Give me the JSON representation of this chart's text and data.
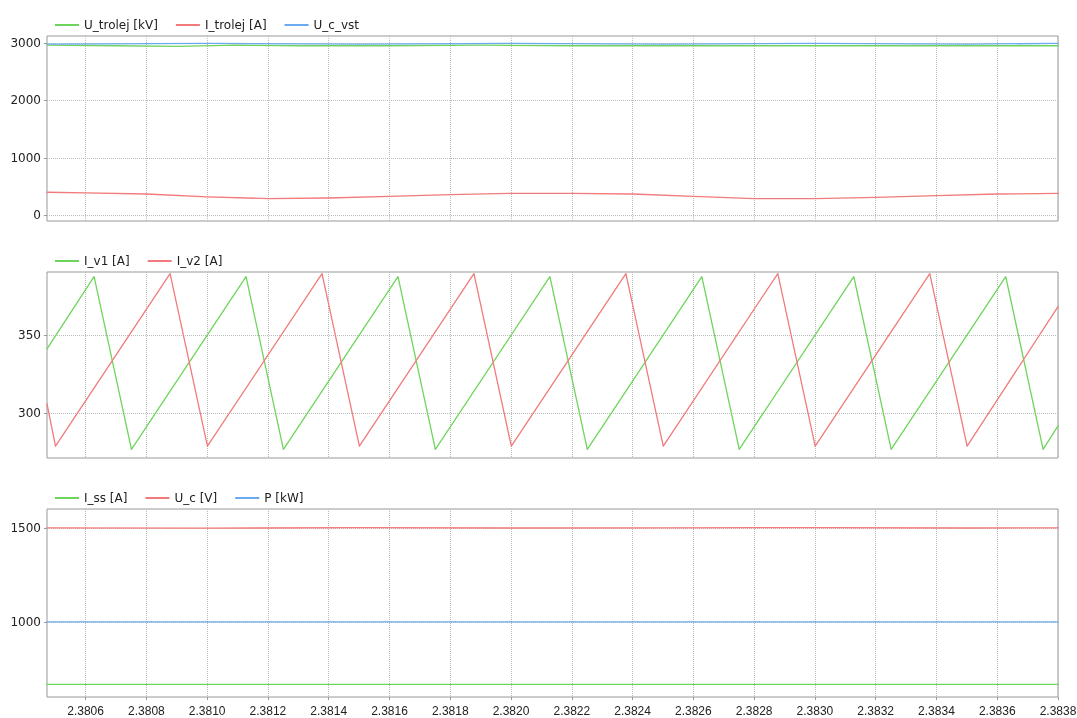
{
  "chart_data": [
    {
      "type": "line",
      "legend": "top left",
      "grid": true,
      "marker": "none",
      "line_style": "solid",
      "tick_labels": "y",
      "xlim": [
        2.380473,
        2.3838
      ],
      "ylim": [
        -100,
        3120
      ],
      "yticks": [
        0,
        1000,
        2000,
        3000
      ],
      "xticks": [
        {
          "value": 2.3806,
          "label": null
        },
        {
          "value": 2.3808,
          "label": null
        },
        {
          "value": 2.381,
          "label": null
        },
        {
          "value": 2.3812,
          "label": null
        },
        {
          "value": 2.3814,
          "label": null
        },
        {
          "value": 2.3816,
          "label": null
        },
        {
          "value": 2.3818,
          "label": null
        },
        {
          "value": 2.382,
          "label": null
        },
        {
          "value": 2.3822,
          "label": null
        },
        {
          "value": 2.3824,
          "label": null
        },
        {
          "value": 2.3826,
          "label": null
        },
        {
          "value": 2.3828,
          "label": null
        },
        {
          "value": 2.383,
          "label": null
        },
        {
          "value": 2.3832,
          "label": null
        },
        {
          "value": 2.3834,
          "label": null
        },
        {
          "value": 2.3836,
          "label": null
        },
        {
          "value": 2.3838,
          "label": null
        }
      ],
      "series": [
        {
          "name": "U_trolej [kV]",
          "color": "#6fd45c",
          "x": [
            2.380473,
            2.3807,
            2.3809,
            2.3811,
            2.3813,
            2.3816,
            2.3819,
            2.3822,
            2.3825,
            2.3828,
            2.3831,
            2.3834,
            2.3836,
            2.3838
          ],
          "values": [
            2960,
            2950,
            2940,
            2960,
            2950,
            2950,
            2960,
            2950,
            2950,
            2950,
            2950,
            2950,
            2950,
            2950
          ]
        },
        {
          "name": "I_trolej [A]",
          "color": "#f27a7a",
          "x": [
            2.380473,
            2.3806,
            2.3808,
            2.381,
            2.3812,
            2.3814,
            2.3816,
            2.3818,
            2.382,
            2.3822,
            2.3824,
            2.3826,
            2.3828,
            2.383,
            2.3832,
            2.3834,
            2.3836,
            2.3838
          ],
          "values": [
            400,
            390,
            370,
            320,
            290,
            300,
            330,
            360,
            380,
            380,
            370,
            330,
            290,
            290,
            310,
            340,
            370,
            380
          ]
        },
        {
          "name": "U_c_vst",
          "color": "#6aaaf0",
          "x": [
            2.380473,
            2.381,
            2.3815,
            2.382,
            2.3825,
            2.383,
            2.3835,
            2.3838
          ],
          "values": [
            2980,
            2990,
            2980,
            2990,
            2980,
            2990,
            2980,
            2990
          ]
        }
      ]
    },
    {
      "type": "line",
      "legend": "top left",
      "grid": true,
      "marker": "none",
      "line_style": "solid",
      "tick_labels": "y",
      "xlim": [
        2.380473,
        2.3838
      ],
      "ylim": [
        271.5,
        390
      ],
      "yticks": [
        300,
        350
      ],
      "xticks": [
        {
          "value": 2.3806,
          "label": null
        },
        {
          "value": 2.3808,
          "label": null
        },
        {
          "value": 2.381,
          "label": null
        },
        {
          "value": 2.3812,
          "label": null
        },
        {
          "value": 2.3814,
          "label": null
        },
        {
          "value": 2.3816,
          "label": null
        },
        {
          "value": 2.3818,
          "label": null
        },
        {
          "value": 2.382,
          "label": null
        },
        {
          "value": 2.3822,
          "label": null
        },
        {
          "value": 2.3824,
          "label": null
        },
        {
          "value": 2.3826,
          "label": null
        },
        {
          "value": 2.3828,
          "label": null
        },
        {
          "value": 2.383,
          "label": null
        },
        {
          "value": 2.3832,
          "label": null
        },
        {
          "value": 2.3834,
          "label": null
        },
        {
          "value": 2.3836,
          "label": null
        },
        {
          "value": 2.3838,
          "label": null
        }
      ],
      "series": [
        {
          "name": "I_v1 [A]",
          "color": "#6fd45c",
          "x": [
            2.380473,
            2.380628,
            2.380751,
            2.381128,
            2.381251,
            2.381628,
            2.381751,
            2.382128,
            2.382251,
            2.382628,
            2.382751,
            2.383128,
            2.383251,
            2.383628,
            2.383751,
            2.3838
          ],
          "values": [
            341,
            387,
            277,
            387,
            277,
            387,
            277,
            387,
            277,
            387,
            277,
            387,
            277,
            387,
            277,
            292
          ]
        },
        {
          "name": "I_v2 [A]",
          "color": "#f27a7a",
          "x": [
            2.380473,
            2.380501,
            2.380878,
            2.381001,
            2.381378,
            2.381501,
            2.381878,
            2.382001,
            2.382378,
            2.382501,
            2.382878,
            2.383001,
            2.383378,
            2.383501,
            2.3838
          ],
          "values": [
            306,
            279,
            389,
            279,
            389,
            279,
            389,
            279,
            389,
            279,
            389,
            279,
            389,
            279,
            368
          ]
        }
      ]
    },
    {
      "type": "line",
      "legend": "top left",
      "grid": true,
      "marker": "none",
      "line_style": "solid",
      "xlim": [
        2.380473,
        2.3838
      ],
      "ylim": [
        600,
        1600
      ],
      "yticks": [
        1000,
        1500
      ],
      "xticks": [
        {
          "value": 2.3806,
          "label": "2.3806"
        },
        {
          "value": 2.3808,
          "label": "2.3808"
        },
        {
          "value": 2.381,
          "label": "2.3810"
        },
        {
          "value": 2.3812,
          "label": "2.3812"
        },
        {
          "value": 2.3814,
          "label": "2.3814"
        },
        {
          "value": 2.3816,
          "label": "2.3816"
        },
        {
          "value": 2.3818,
          "label": "2.3818"
        },
        {
          "value": 2.382,
          "label": "2.3820"
        },
        {
          "value": 2.3822,
          "label": "2.3822"
        },
        {
          "value": 2.3824,
          "label": "2.3824"
        },
        {
          "value": 2.3826,
          "label": "2.3826"
        },
        {
          "value": 2.3828,
          "label": "2.3828"
        },
        {
          "value": 2.383,
          "label": "2.3830"
        },
        {
          "value": 2.3832,
          "label": "2.3832"
        },
        {
          "value": 2.3834,
          "label": "2.3834"
        },
        {
          "value": 2.3836,
          "label": "2.3836"
        },
        {
          "value": 2.3838,
          "label": "2.3838"
        }
      ],
      "series": [
        {
          "name": "I_ss [A]",
          "color": "#6fd45c",
          "x": [
            2.380473,
            2.3838
          ],
          "values": [
            667,
            667
          ]
        },
        {
          "name": "U_c [V]",
          "color": "#f27a7a",
          "x": [
            2.380473,
            2.381,
            2.3815,
            2.382,
            2.3825,
            2.383,
            2.3835,
            2.3838
          ],
          "values": [
            1500,
            1498,
            1501,
            1499,
            1500,
            1501,
            1499,
            1500
          ]
        },
        {
          "name": "P [kW]",
          "color": "#6aaaf0",
          "x": [
            2.380473,
            2.3838
          ],
          "values": [
            1000,
            1000
          ]
        }
      ]
    }
  ]
}
